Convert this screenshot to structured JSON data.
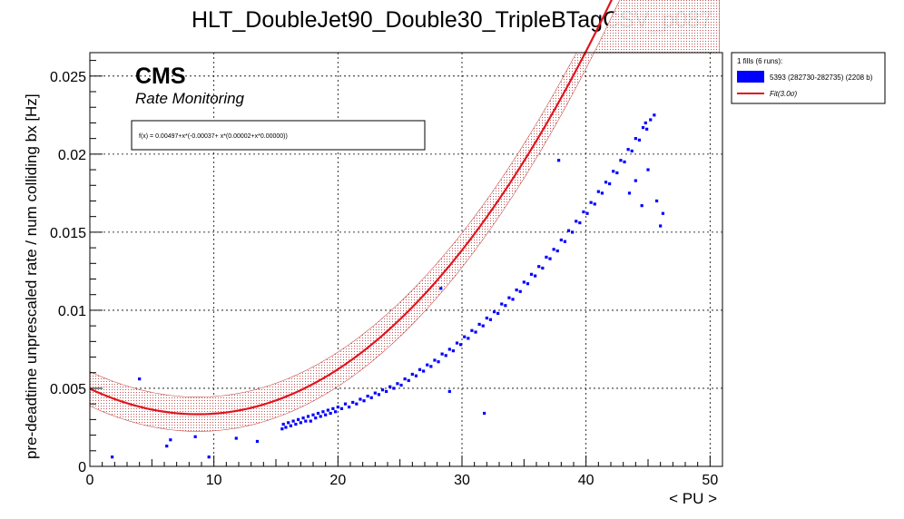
{
  "chart_data": {
    "type": "scatter",
    "title": "HLT_DoubleJet90_Double30_TripleBTagCSV_p087",
    "xlabel": "< PU >",
    "ylabel": "pre-deadtime unprescaled rate / num colliding bx [Hz]",
    "xlim": [
      0,
      51
    ],
    "ylim": [
      0,
      0.0265
    ],
    "x_ticks": [
      "0",
      "10",
      "20",
      "30",
      "40",
      "50"
    ],
    "y_ticks": [
      "0",
      "0.005",
      "0.01",
      "0.015",
      "0.02",
      "0.025"
    ],
    "grid": true,
    "header_lines": [
      "CMS",
      "Rate Monitoring"
    ],
    "fit_formula": "f(x) = 0.00497+x*(-0.00037+ x*(0.00002+x*0.00000))",
    "fit": {
      "c0": 0.00497,
      "c1": -0.00037,
      "c2": 2.05e-05,
      "c3": 5.65e-08,
      "band_sigma": 3.0,
      "band_halfwidth": 0.0011
    },
    "legend": {
      "placement": "outside-right",
      "title": "1 fills (6 runs):",
      "entries": [
        {
          "label": "5393 (282730-282735) (2208 b)",
          "color": "#0000ff"
        },
        {
          "label": "Fit(3.0σ)",
          "color": "#e0141e"
        }
      ]
    },
    "series": [
      {
        "name": "5393 (282730-282735) (2208 b)",
        "color": "#0000ff",
        "points": [
          [
            1.8,
            0.0006
          ],
          [
            4.0,
            0.0056
          ],
          [
            6.2,
            0.0013
          ],
          [
            6.5,
            0.0017
          ],
          [
            8.5,
            0.0019
          ],
          [
            9.6,
            0.0006
          ],
          [
            11.8,
            0.0018
          ],
          [
            13.5,
            0.0016
          ],
          [
            15.5,
            0.0024
          ],
          [
            15.6,
            0.0027
          ],
          [
            15.8,
            0.0025
          ],
          [
            16.0,
            0.0028
          ],
          [
            16.2,
            0.0026
          ],
          [
            16.4,
            0.0029
          ],
          [
            16.6,
            0.0027
          ],
          [
            16.8,
            0.003
          ],
          [
            17.0,
            0.0028
          ],
          [
            17.2,
            0.0031
          ],
          [
            17.4,
            0.0029
          ],
          [
            17.6,
            0.0032
          ],
          [
            17.8,
            0.0029
          ],
          [
            18.0,
            0.0033
          ],
          [
            18.2,
            0.0031
          ],
          [
            18.4,
            0.0034
          ],
          [
            18.6,
            0.0032
          ],
          [
            18.8,
            0.0035
          ],
          [
            19.0,
            0.0033
          ],
          [
            19.2,
            0.0036
          ],
          [
            19.4,
            0.0034
          ],
          [
            19.6,
            0.0037
          ],
          [
            19.8,
            0.0035
          ],
          [
            20.0,
            0.0038
          ],
          [
            20.3,
            0.0037
          ],
          [
            20.6,
            0.004
          ],
          [
            20.9,
            0.0038
          ],
          [
            21.2,
            0.0041
          ],
          [
            21.5,
            0.004
          ],
          [
            21.8,
            0.0043
          ],
          [
            22.1,
            0.0042
          ],
          [
            22.4,
            0.0045
          ],
          [
            22.7,
            0.0044
          ],
          [
            23.0,
            0.0047
          ],
          [
            23.3,
            0.0046
          ],
          [
            23.6,
            0.0049
          ],
          [
            23.9,
            0.0048
          ],
          [
            24.2,
            0.0051
          ],
          [
            24.5,
            0.005
          ],
          [
            24.8,
            0.0053
          ],
          [
            25.1,
            0.0052
          ],
          [
            25.4,
            0.0056
          ],
          [
            25.7,
            0.0055
          ],
          [
            26.0,
            0.0059
          ],
          [
            26.3,
            0.0058
          ],
          [
            26.6,
            0.0062
          ],
          [
            26.9,
            0.0061
          ],
          [
            27.2,
            0.0065
          ],
          [
            27.5,
            0.0064
          ],
          [
            27.8,
            0.0068
          ],
          [
            28.1,
            0.0067
          ],
          [
            28.4,
            0.0072
          ],
          [
            28.7,
            0.0071
          ],
          [
            29.0,
            0.0075
          ],
          [
            29.3,
            0.0074
          ],
          [
            29.6,
            0.0079
          ],
          [
            29.9,
            0.0078
          ],
          [
            30.2,
            0.0083
          ],
          [
            30.5,
            0.0082
          ],
          [
            30.8,
            0.0087
          ],
          [
            31.1,
            0.0086
          ],
          [
            31.4,
            0.0091
          ],
          [
            31.7,
            0.009
          ],
          [
            32.0,
            0.0095
          ],
          [
            32.3,
            0.0094
          ],
          [
            32.6,
            0.0099
          ],
          [
            32.9,
            0.0098
          ],
          [
            33.2,
            0.0104
          ],
          [
            33.5,
            0.0103
          ],
          [
            33.8,
            0.0108
          ],
          [
            34.1,
            0.0107
          ],
          [
            34.4,
            0.0113
          ],
          [
            34.7,
            0.0112
          ],
          [
            35.0,
            0.0118
          ],
          [
            35.3,
            0.0117
          ],
          [
            35.6,
            0.0123
          ],
          [
            35.9,
            0.0122
          ],
          [
            36.2,
            0.0128
          ],
          [
            36.5,
            0.0127
          ],
          [
            36.8,
            0.0134
          ],
          [
            37.1,
            0.0133
          ],
          [
            37.4,
            0.0139
          ],
          [
            37.7,
            0.0138
          ],
          [
            38.0,
            0.0145
          ],
          [
            38.3,
            0.0144
          ],
          [
            38.6,
            0.0151
          ],
          [
            38.9,
            0.015
          ],
          [
            39.2,
            0.0157
          ],
          [
            39.5,
            0.0156
          ],
          [
            39.8,
            0.0163
          ],
          [
            40.1,
            0.0162
          ],
          [
            40.4,
            0.0169
          ],
          [
            40.7,
            0.0168
          ],
          [
            41.0,
            0.0176
          ],
          [
            41.3,
            0.0175
          ],
          [
            41.6,
            0.0182
          ],
          [
            41.9,
            0.0181
          ],
          [
            42.2,
            0.0189
          ],
          [
            42.5,
            0.0188
          ],
          [
            42.8,
            0.0196
          ],
          [
            43.1,
            0.0195
          ],
          [
            43.4,
            0.0203
          ],
          [
            43.7,
            0.0202
          ],
          [
            44.0,
            0.021
          ],
          [
            44.3,
            0.0209
          ],
          [
            44.6,
            0.0217
          ],
          [
            44.9,
            0.0216
          ],
          [
            45.2,
            0.0222
          ],
          [
            45.5,
            0.0225
          ],
          [
            44.8,
            0.022
          ],
          [
            45.7,
            0.017
          ],
          [
            46.0,
            0.0154
          ],
          [
            46.2,
            0.0162
          ],
          [
            37.8,
            0.0196
          ],
          [
            28.3,
            0.0114
          ],
          [
            31.8,
            0.0034
          ],
          [
            29.0,
            0.0048
          ],
          [
            44.5,
            0.0167
          ],
          [
            44.0,
            0.0183
          ],
          [
            45.0,
            0.019
          ],
          [
            43.5,
            0.0175
          ]
        ]
      }
    ]
  }
}
